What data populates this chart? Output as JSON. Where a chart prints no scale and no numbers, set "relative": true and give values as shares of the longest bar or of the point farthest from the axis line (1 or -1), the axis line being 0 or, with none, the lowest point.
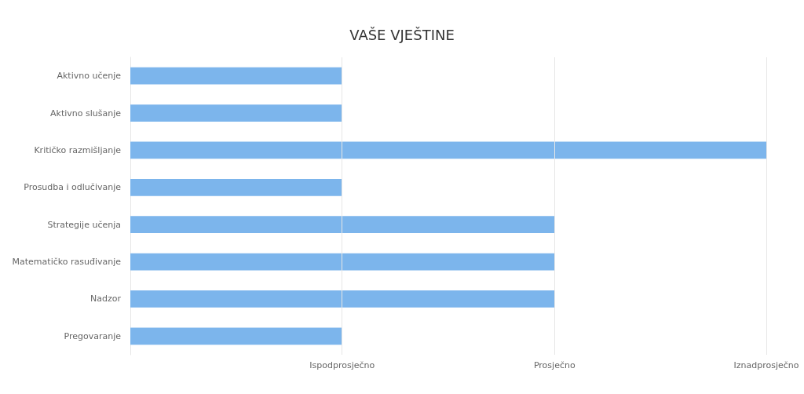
{
  "chart_data": {
    "type": "bar",
    "orientation": "horizontal",
    "title": "VAŠE VJEŠTINE",
    "relative": true,
    "categories": [
      "Aktivno učenje",
      "Aktivno slušanje",
      "Kritičko razmišljanje",
      "Prosudba i odlučivanje",
      "Strategije učenja",
      "Matematičko rasuđivanje",
      "Nadzor",
      "Pregovaranje"
    ],
    "values": [
      0.333,
      0.333,
      1,
      0.333,
      0.667,
      0.667,
      0.667,
      0.333
    ],
    "color": "#7cb5ec",
    "ref_lines": [
      {
        "axis": "x",
        "value": 0.333,
        "label": "Ispodprosječno",
        "color": "#e6e6e6"
      },
      {
        "axis": "x",
        "value": 0.667,
        "label": "Prosječno",
        "color": "#e6e6e6"
      },
      {
        "axis": "x",
        "value": 1,
        "label": "Iznadprosječno",
        "color": "#e6e6e6"
      }
    ]
  }
}
